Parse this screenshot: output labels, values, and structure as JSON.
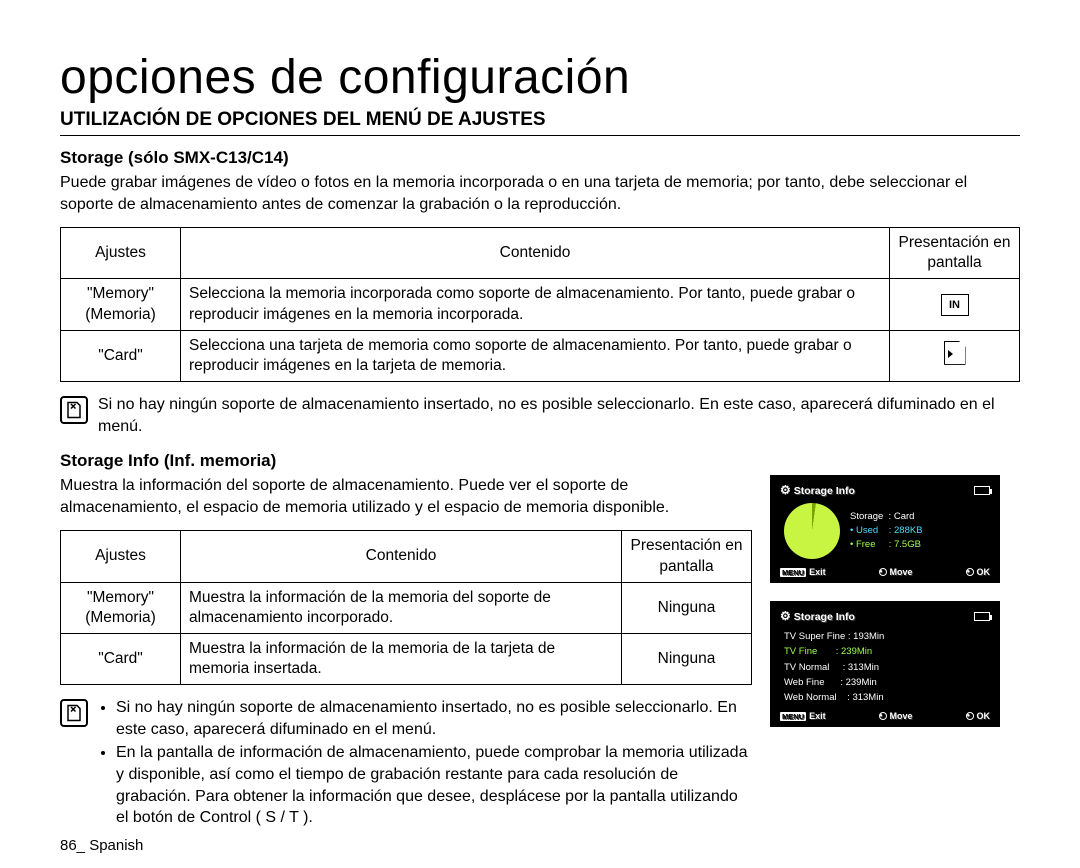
{
  "page_title": "opciones de configuración",
  "section_title": "UTILIZACIÓN DE OPCIONES DEL MENÚ DE AJUSTES",
  "storage": {
    "heading": "Storage (sólo SMX-C13/C14)",
    "intro": "Puede grabar imágenes de vídeo o fotos en la memoria incorporada o en una tarjeta de memoria; por tanto, debe seleccionar el soporte de almacenamiento antes de comenzar la grabación o la reproducción.",
    "table": {
      "headers": [
        "Ajustes",
        "Contenido",
        "Presentación en pantalla"
      ],
      "rows": [
        {
          "ajuste": "\"Memory\" (Memoria)",
          "contenido": "Selecciona la memoria incorporada como soporte de almacenamiento. Por tanto, puede grabar o reproducir imágenes en la memoria incorporada.",
          "icon": "in"
        },
        {
          "ajuste": "\"Card\"",
          "contenido": "Selecciona una tarjeta de memoria como soporte de almacenamiento. Por tanto, puede grabar o reproducir imágenes en la tarjeta de memoria.",
          "icon": "sd"
        }
      ]
    },
    "note": "Si no hay ningún soporte de almacenamiento insertado, no es posible seleccionarlo. En este caso, aparecerá difuminado en el menú."
  },
  "storage_info": {
    "heading": "Storage Info (Inf. memoria)",
    "intro": "Muestra la información del soporte de almacenamiento. Puede ver el soporte de almacenamiento, el espacio de memoria utilizado y el espacio de memoria disponible.",
    "table": {
      "headers": [
        "Ajustes",
        "Contenido",
        "Presentación en pantalla"
      ],
      "rows": [
        {
          "ajuste": "\"Memory\" (Memoria)",
          "contenido": "Muestra la información de la memoria del soporte de almacenamiento incorporado.",
          "pres": "Ninguna"
        },
        {
          "ajuste": "\"Card\"",
          "contenido": "Muestra la información de la memoria de la tarjeta de memoria insertada.",
          "pres": "Ninguna"
        }
      ]
    },
    "notes": [
      "Si no hay ningún soporte de almacenamiento insertado, no es posible seleccionarlo. En este caso, aparecerá difuminado en el menú.",
      "En la pantalla de información de almacenamiento, puede comprobar la memoria utilizada y disponible, así como el tiempo de grabación restante para cada resolución de grabación. Para obtener la información que desee, desplácese por la pantalla utilizando el botón de Control ( S / T )."
    ]
  },
  "lcd1": {
    "title": "Storage Info",
    "storage_label": "Storage",
    "storage_value": "Card",
    "used_label": "Used",
    "used_value": "288KB",
    "free_label": "Free",
    "free_value": "7.5GB",
    "used_color": "#4fd8ff",
    "free_color": "#9fff4d",
    "pie_used_deg": 8,
    "pie_bg_dark": "#7aa300",
    "pie_bg_light": "#c8f542",
    "footer": {
      "menu": "MENU",
      "exit": "Exit",
      "move": "Move",
      "ok": "OK"
    }
  },
  "lcd2": {
    "title": "Storage Info",
    "rows": [
      {
        "label": "TV Super Fine",
        "value": "193Min",
        "hl": false
      },
      {
        "label": "TV Fine",
        "value": "239Min",
        "hl": true
      },
      {
        "label": "TV Normal",
        "value": "313Min",
        "hl": false
      },
      {
        "label": "Web Fine",
        "value": "239Min",
        "hl": false
      },
      {
        "label": "Web Normal",
        "value": "313Min",
        "hl": false
      }
    ],
    "footer": {
      "menu": "MENU",
      "exit": "Exit",
      "move": "Move",
      "ok": "OK"
    }
  },
  "page_number": "86_ Spanish"
}
